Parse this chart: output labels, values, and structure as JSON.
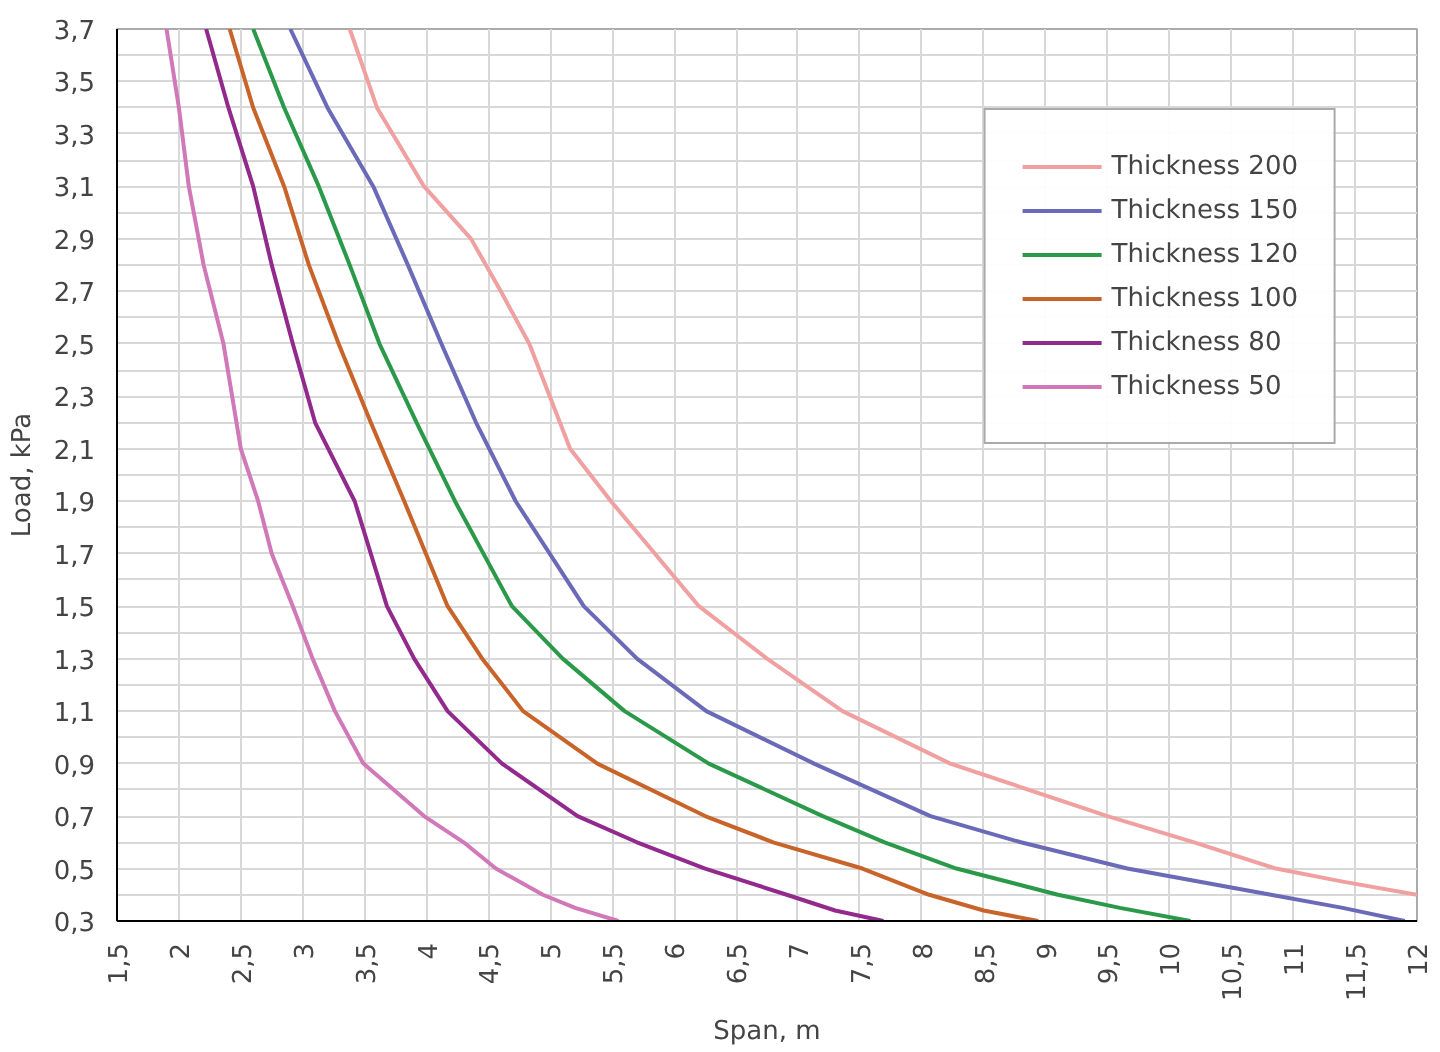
{
  "chart_data": {
    "type": "line",
    "xlabel": "Span, m",
    "ylabel": "Load, kPa",
    "xlim": [
      1.5,
      12
    ],
    "ylim": [
      0.3,
      3.7
    ],
    "xticks": [
      {
        "value": 1.5,
        "label": "1,5"
      },
      2,
      {
        "value": 2.5,
        "label": "2,5"
      },
      3,
      {
        "value": 3.5,
        "label": "3,5"
      },
      4,
      {
        "value": 4.5,
        "label": "4,5"
      },
      5,
      {
        "value": 5.5,
        "label": "5,5"
      },
      6,
      {
        "value": 6.5,
        "label": "6,5"
      },
      7,
      {
        "value": 7.5,
        "label": "7,5"
      },
      8,
      {
        "value": 8.5,
        "label": "8,5"
      },
      9,
      {
        "value": 9.5,
        "label": "9,5"
      },
      10,
      {
        "value": 10.5,
        "label": "10,5"
      },
      11,
      {
        "value": 11.5,
        "label": "11,5"
      },
      12
    ],
    "yticks": [
      {
        "value": 0.3,
        "label": "0,3"
      },
      {
        "value": 0.4,
        "label": null
      },
      {
        "value": 0.5,
        "label": "0,5"
      },
      {
        "value": 0.6,
        "label": null
      },
      {
        "value": 0.7,
        "label": "0,7"
      },
      {
        "value": 0.8,
        "label": null
      },
      {
        "value": 0.9,
        "label": "0,9"
      },
      {
        "value": 1.0,
        "label": null
      },
      {
        "value": 1.1,
        "label": "1,1"
      },
      {
        "value": 1.2,
        "label": null
      },
      {
        "value": 1.3,
        "label": "1,3"
      },
      {
        "value": 1.4,
        "label": null
      },
      {
        "value": 1.5,
        "label": "1,5"
      },
      {
        "value": 1.6,
        "label": null
      },
      {
        "value": 1.7,
        "label": "1,7"
      },
      {
        "value": 1.8,
        "label": null
      },
      {
        "value": 1.9,
        "label": "1,9"
      },
      {
        "value": 2.0,
        "label": null
      },
      {
        "value": 2.1,
        "label": "2,1"
      },
      {
        "value": 2.2,
        "label": null
      },
      {
        "value": 2.3,
        "label": "2,3"
      },
      {
        "value": 2.4,
        "label": null
      },
      {
        "value": 2.5,
        "label": "2,5"
      },
      {
        "value": 2.6,
        "label": null
      },
      {
        "value": 2.7,
        "label": "2,7"
      },
      {
        "value": 2.8,
        "label": null
      },
      {
        "value": 2.9,
        "label": "2,9"
      },
      {
        "value": 3.0,
        "label": null
      },
      {
        "value": 3.1,
        "label": "3,1"
      },
      {
        "value": 3.2,
        "label": null
      },
      {
        "value": 3.3,
        "label": "3,3"
      },
      {
        "value": 3.4,
        "label": null
      },
      {
        "value": 3.5,
        "label": "3,5"
      },
      {
        "value": 3.6,
        "label": null
      },
      {
        "value": 3.7,
        "label": "3,7"
      }
    ],
    "grid": true,
    "legend": "top right",
    "series": [
      {
        "name": "Thickness 200",
        "color": "#f0a0a0",
        "x": [
          3.38,
          3.6,
          3.98,
          4.36,
          4.6,
          4.83,
          5.16,
          5.49,
          6.2,
          6.75,
          7.36,
          8.23,
          9.5,
          10.2,
          10.86,
          11.4,
          12.0
        ],
        "values": [
          3.7,
          3.4,
          3.1,
          2.9,
          2.7,
          2.5,
          2.1,
          1.9,
          1.5,
          1.3,
          1.1,
          0.9,
          0.7,
          0.6,
          0.5,
          0.45,
          0.4
        ]
      },
      {
        "name": "Thickness 150",
        "color": "#6a6ab8",
        "x": [
          2.9,
          3.2,
          3.57,
          3.85,
          4.12,
          4.4,
          4.72,
          5.27,
          5.7,
          6.26,
          7.13,
          8.07,
          8.8,
          9.66,
          10.82,
          11.4,
          11.9
        ],
        "values": [
          3.7,
          3.4,
          3.1,
          2.8,
          2.5,
          2.2,
          1.9,
          1.5,
          1.3,
          1.1,
          0.9,
          0.7,
          0.6,
          0.5,
          0.4,
          0.35,
          0.3
        ]
      },
      {
        "name": "Thickness 120",
        "color": "#2a9a4a",
        "x": [
          2.6,
          2.85,
          3.13,
          3.38,
          3.62,
          3.92,
          4.23,
          4.69,
          5.1,
          5.6,
          6.28,
          7.2,
          7.7,
          8.28,
          9.1,
          9.6,
          10.17
        ],
        "values": [
          3.7,
          3.4,
          3.1,
          2.8,
          2.5,
          2.2,
          1.9,
          1.5,
          1.3,
          1.1,
          0.9,
          0.7,
          0.6,
          0.5,
          0.4,
          0.35,
          0.3
        ]
      },
      {
        "name": "Thickness 100",
        "color": "#c8642a",
        "x": [
          2.41,
          2.6,
          2.85,
          3.05,
          3.29,
          3.55,
          3.82,
          4.17,
          4.45,
          4.78,
          5.38,
          6.25,
          6.8,
          7.52,
          8.06,
          8.5,
          8.94
        ],
        "values": [
          3.7,
          3.4,
          3.1,
          2.8,
          2.5,
          2.2,
          1.9,
          1.5,
          1.3,
          1.1,
          0.9,
          0.7,
          0.6,
          0.5,
          0.4,
          0.34,
          0.3
        ]
      },
      {
        "name": "Thickness 80",
        "color": "#922a8e",
        "x": [
          2.22,
          2.4,
          2.6,
          2.75,
          2.92,
          3.1,
          3.42,
          3.68,
          3.9,
          4.17,
          4.61,
          5.22,
          5.7,
          6.25,
          6.91,
          7.3,
          7.69
        ],
        "values": [
          3.7,
          3.4,
          3.1,
          2.8,
          2.5,
          2.2,
          1.9,
          1.5,
          1.3,
          1.1,
          0.9,
          0.7,
          0.6,
          0.5,
          0.4,
          0.34,
          0.3
        ]
      },
      {
        "name": "Thickness 50",
        "color": "#d078b8",
        "x": [
          1.9,
          2.0,
          2.08,
          2.2,
          2.36,
          2.5,
          2.64,
          2.75,
          2.92,
          3.08,
          3.26,
          3.49,
          3.98,
          4.3,
          4.56,
          4.94,
          5.2,
          5.55
        ],
        "values": [
          3.7,
          3.4,
          3.1,
          2.8,
          2.5,
          2.1,
          1.9,
          1.7,
          1.5,
          1.3,
          1.1,
          0.9,
          0.7,
          0.6,
          0.5,
          0.4,
          0.35,
          0.3
        ]
      }
    ]
  }
}
